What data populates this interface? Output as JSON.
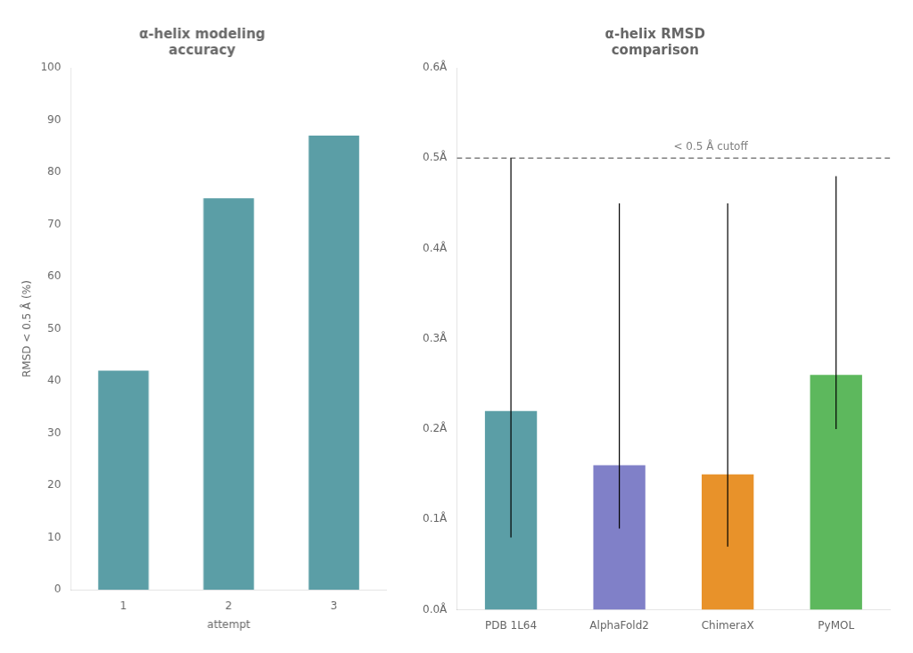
{
  "chart_data": [
    {
      "type": "bar",
      "title": "α-helix modeling\naccuracy",
      "x_label": "attempt",
      "y_label": "RMSD < 0.5 Å (%)",
      "categories": [
        "1",
        "2",
        "3"
      ],
      "values": [
        42,
        75,
        87
      ],
      "color": "#5b9ea6",
      "ylim": [
        0,
        100
      ],
      "yticks": [
        0,
        10,
        20,
        30,
        40,
        50,
        60,
        70,
        80,
        90,
        100
      ],
      "grid": false
    },
    {
      "type": "bar",
      "title": "α-helix RMSD\ncomparison",
      "categories": [
        "PDB 1L64",
        "AlphaFold2",
        "ChimeraX",
        "PyMOL"
      ],
      "values": [
        0.22,
        0.16,
        0.15,
        0.26
      ],
      "error_low": [
        0.14,
        0.07,
        0.08,
        0.06
      ],
      "error_high": [
        0.28,
        0.29,
        0.3,
        0.22
      ],
      "colors": [
        "#5b9ea6",
        "#8080c8",
        "#e8922a",
        "#5db85d"
      ],
      "ylim": [
        0,
        0.6
      ],
      "yticks": [
        {
          "value": 0.0,
          "label": "0.0Å"
        },
        {
          "value": 0.1,
          "label": "0.1Å"
        },
        {
          "value": 0.2,
          "label": "0.2Å"
        },
        {
          "value": 0.3,
          "label": "0.3Å"
        },
        {
          "value": 0.4,
          "label": "0.4Å"
        },
        {
          "value": 0.5,
          "label": "0.5Å"
        },
        {
          "value": 0.6,
          "label": "0.6Å"
        }
      ],
      "grid": false,
      "annotations": [
        {
          "type": "hline",
          "y": 0.5,
          "text": "< 0.5 Å cutoff",
          "color": "gray",
          "line_style": "dashed"
        }
      ]
    }
  ]
}
